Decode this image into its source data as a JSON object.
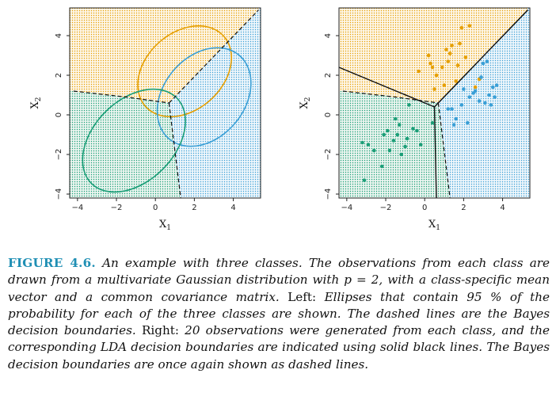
{
  "caption": {
    "label": "FIGURE 4.6.",
    "part1": "An example with three classes. The observations from each class are drawn from a multivariate Gaussian distribution with p = 2, with a class-specific mean vector and a common covariance matrix.",
    "left_label": "Left:",
    "part2": "Ellipses that contain 95 % of the probability for each of the three classes are shown. The dashed lines are the Bayes decision boundaries.",
    "right_label": "Right:",
    "part3": "20 observations were generated from each class, and the corresponding LDA decision boundaries are indicated using solid black lines. The Bayes decision boundaries are once again shown as dashed lines."
  },
  "colors": {
    "orange": "#e69f00",
    "green": "#1b9e77",
    "blue": "#3a9fd6",
    "orange_bg": "#fbecd0",
    "green_bg": "#d4ebdf",
    "blue_bg": "#d8ebf5"
  },
  "chart_data": [
    {
      "type": "scatter",
      "title": "",
      "xlabel": "X",
      "xlabel_sub": "1",
      "ylabel": "X",
      "ylabel_sub": "2",
      "xlim": [
        -4.4,
        5.4
      ],
      "ylim": [
        -4.2,
        5.4
      ],
      "xticks": [
        -4,
        -2,
        0,
        2,
        4
      ],
      "yticks": [
        -4,
        -2,
        0,
        2,
        4
      ],
      "tick_labels_x": [
        "−4",
        "−2",
        "0",
        "2",
        "4"
      ],
      "tick_labels_y": [
        "−4",
        "−2",
        "0",
        "2",
        "4"
      ],
      "regions": [
        "orange",
        "green",
        "blue"
      ],
      "ellipses": [
        {
          "class": "orange",
          "center": [
            1.5,
            2.2
          ],
          "rx": 2.7,
          "ry": 1.95,
          "angle_deg": 42
        },
        {
          "class": "blue",
          "center": [
            2.5,
            0.9
          ],
          "rx": 2.8,
          "ry": 2.05,
          "angle_deg": 50
        },
        {
          "class": "green",
          "center": [
            -1.1,
            -1.3
          ],
          "rx": 3.1,
          "ry": 2.05,
          "angle_deg": 45
        }
      ],
      "bayes_boundaries": [
        {
          "points": [
            [
              -4.2,
              1.2
            ],
            [
              -1.5,
              0.9
            ],
            [
              0.7,
              0.6
            ]
          ]
        },
        {
          "points": [
            [
              0.7,
              0.6
            ],
            [
              1.3,
              -4.2
            ]
          ]
        },
        {
          "points": [
            [
              0.7,
              0.6
            ],
            [
              5.3,
              5.3
            ]
          ]
        }
      ]
    },
    {
      "type": "scatter",
      "title": "",
      "xlabel": "X",
      "xlabel_sub": "1",
      "ylabel": "X",
      "ylabel_sub": "2",
      "xlim": [
        -4.4,
        5.4
      ],
      "ylim": [
        -4.2,
        5.4
      ],
      "xticks": [
        -4,
        -2,
        0,
        2,
        4
      ],
      "yticks": [
        -4,
        -2,
        0,
        2,
        4
      ],
      "tick_labels_x": [
        "−4",
        "−2",
        "0",
        "2",
        "4"
      ],
      "tick_labels_y": [
        "−4",
        "−2",
        "0",
        "2",
        "4"
      ],
      "regions": [
        "orange",
        "green",
        "blue"
      ],
      "lda_boundaries": [
        {
          "points": [
            [
              -4.4,
              2.4
            ],
            [
              0.5,
              0.4
            ]
          ]
        },
        {
          "points": [
            [
              0.5,
              0.4
            ],
            [
              0.6,
              -4.2
            ]
          ]
        },
        {
          "points": [
            [
              0.5,
              0.4
            ],
            [
              5.3,
              5.3
            ]
          ]
        }
      ],
      "bayes_boundaries": [
        {
          "points": [
            [
              -4.2,
              1.2
            ],
            [
              -1.5,
              0.9
            ],
            [
              0.7,
              0.6
            ]
          ]
        },
        {
          "points": [
            [
              0.7,
              0.6
            ],
            [
              1.3,
              -4.2
            ]
          ]
        },
        {
          "points": [
            [
              0.7,
              0.6
            ],
            [
              5.3,
              5.3
            ]
          ]
        }
      ],
      "series": [
        {
          "name": "",
          "class": "orange",
          "x": [
            0.4,
            1.1,
            1.9,
            2.3,
            1.8,
            1.4,
            1.2,
            0.9,
            0.6,
            -0.3,
            0.3,
            1.6,
            2.1,
            1.0,
            2.6,
            0.5,
            1.3,
            1.7,
            2.8,
            0.2
          ],
          "y": [
            2.4,
            3.3,
            4.4,
            4.5,
            3.6,
            3.5,
            2.7,
            2.4,
            2.0,
            2.2,
            2.6,
            1.7,
            2.9,
            1.5,
            1.4,
            1.3,
            3.1,
            2.5,
            1.8,
            3.0
          ]
        },
        {
          "name": "",
          "class": "green",
          "x": [
            -3.1,
            -2.9,
            -2.2,
            -1.8,
            -1.6,
            -1.9,
            -1.3,
            -1.0,
            -2.1,
            -2.6,
            -1.5,
            -0.6,
            -0.4,
            -1.2,
            -0.8,
            0.4,
            -0.2,
            -3.2,
            -1.4,
            -0.9
          ],
          "y": [
            -3.3,
            -1.5,
            -2.6,
            -1.8,
            -1.3,
            -0.8,
            -0.5,
            -1.6,
            -1.0,
            -1.8,
            -0.2,
            -0.7,
            -0.8,
            -2.0,
            0.5,
            -0.4,
            -1.5,
            -1.4,
            -1.0,
            -1.2
          ]
        },
        {
          "name": "",
          "class": "blue",
          "x": [
            1.4,
            1.9,
            2.3,
            2.6,
            3.0,
            3.2,
            3.5,
            3.3,
            2.8,
            2.2,
            1.6,
            1.2,
            3.6,
            2.9,
            3.1,
            2.5,
            3.4,
            3.7,
            2.0,
            1.5
          ],
          "y": [
            0.3,
            0.5,
            0.9,
            1.2,
            2.6,
            2.7,
            1.4,
            1.0,
            0.7,
            -0.4,
            -0.2,
            0.3,
            0.9,
            1.9,
            0.6,
            1.1,
            0.5,
            1.5,
            1.3,
            -0.5
          ]
        }
      ]
    }
  ]
}
